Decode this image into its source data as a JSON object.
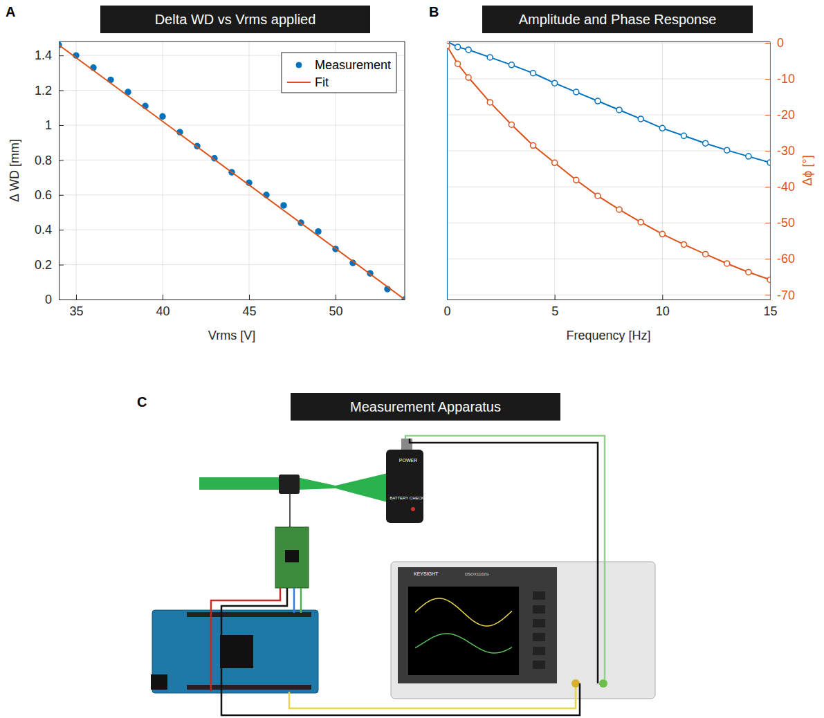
{
  "chart_data": [
    {
      "type": "scatter",
      "panel": "A",
      "title": "Delta WD vs Vrms applied",
      "x_label": "Vrms [V]",
      "y_label": "Δ WD [mm]",
      "xlim": [
        34,
        54
      ],
      "xticks": [
        35,
        40,
        45,
        50
      ],
      "ylim": [
        0,
        1.48
      ],
      "yticks": [
        0,
        0.2,
        0.4,
        0.6,
        0.8,
        1,
        1.2,
        1.4
      ],
      "grid": true,
      "legend": "northeast",
      "series": [
        {
          "name": "Measurement",
          "type": "scatter",
          "marker": "circle",
          "color": "#0072BD",
          "x": [
            34,
            35,
            36,
            37,
            38,
            39,
            40,
            41,
            42,
            43,
            44,
            45,
            46,
            47,
            48,
            49,
            50,
            51,
            52,
            53,
            54
          ],
          "values": [
            1.46,
            1.4,
            1.33,
            1.26,
            1.19,
            1.11,
            1.05,
            0.96,
            0.88,
            0.81,
            0.73,
            0.67,
            0.6,
            0.54,
            0.44,
            0.39,
            0.29,
            0.21,
            0.15,
            0.06,
            0.0
          ]
        },
        {
          "name": "Fit",
          "type": "line",
          "line_style": "solid",
          "color": "#D95319",
          "x": [
            34,
            54
          ],
          "values": [
            1.46,
            0.0
          ]
        }
      ]
    },
    {
      "type": "line",
      "panel": "B",
      "title": "Amplitude and Phase Response",
      "x_label": "Frequency [Hz]",
      "y2_label": "Δϕ [°]",
      "xlim": [
        0,
        15
      ],
      "xticks": [
        0,
        5,
        10,
        15
      ],
      "ylim": [
        -7.5,
        0
      ],
      "y2lim": [
        -71.3,
        0.4
      ],
      "y2ticks": [
        -70,
        -60,
        -50,
        -40,
        -30,
        -20,
        -10,
        0
      ],
      "grid": true,
      "series": [
        {
          "type": "line",
          "marker": "circle",
          "color": "#0072BD",
          "axis": "y",
          "x": [
            0,
            0.5,
            1,
            2,
            3,
            4,
            5,
            6,
            7,
            8,
            9,
            10,
            11,
            12,
            13,
            14,
            15
          ],
          "values": [
            0,
            -0.16,
            -0.24,
            -0.46,
            -0.68,
            -0.92,
            -1.21,
            -1.47,
            -1.73,
            -1.99,
            -2.25,
            -2.52,
            -2.74,
            -2.96,
            -3.16,
            -3.34,
            -3.52
          ]
        },
        {
          "type": "line",
          "marker": "circle",
          "color": "#D95319",
          "axis": "y2",
          "x": [
            0,
            0.5,
            1,
            2,
            3,
            4,
            5,
            6,
            7,
            8,
            9,
            10,
            11,
            12,
            13,
            14,
            15
          ],
          "values": [
            -0.8,
            -5.8,
            -9.6,
            -16.5,
            -22.7,
            -28.5,
            -33.3,
            -38.1,
            -42.5,
            -46.3,
            -49.8,
            -53.1,
            -56,
            -58.7,
            -61.3,
            -63.7,
            -65.8
          ]
        }
      ]
    }
  ],
  "diagram": {
    "panel": "C",
    "title": "Measurement Apparatus",
    "texts": {
      "power": "POWER",
      "battery": "BATTERY CHECK",
      "brand": "KEYSIGHT",
      "model": "DSOX1102G"
    }
  }
}
